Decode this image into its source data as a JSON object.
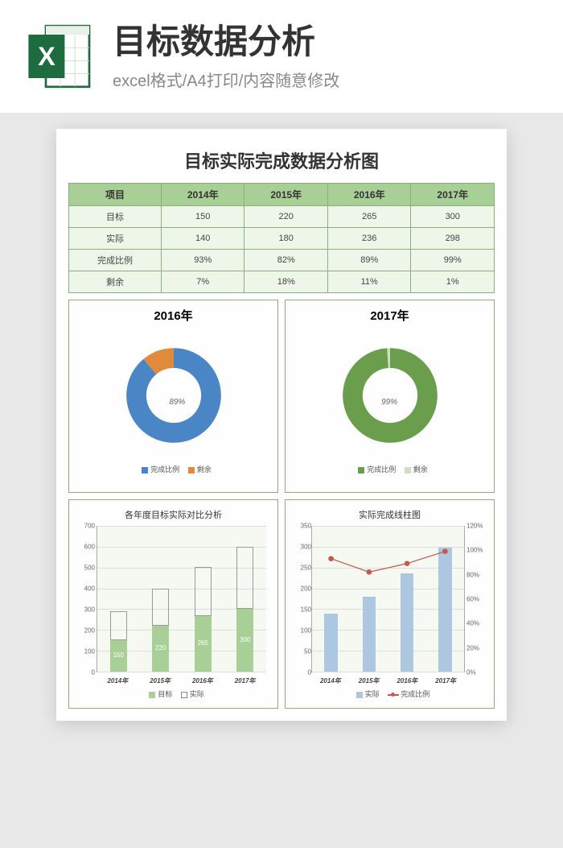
{
  "header": {
    "title": "目标数据分析",
    "subtitle": "excel格式/A4打印/内容随意修改",
    "icon_bg": "#1e6b3f",
    "icon_letter": "X"
  },
  "doc": {
    "title": "目标实际完成数据分析图"
  },
  "table": {
    "header_bg": "#a8cf95",
    "cell_bg": "#eef6e9",
    "border_color": "#8aaf7a",
    "columns": [
      "项目",
      "2014年",
      "2015年",
      "2016年",
      "2017年"
    ],
    "rows": [
      {
        "label": "目标",
        "values": [
          "150",
          "220",
          "265",
          "300"
        ]
      },
      {
        "label": "实际",
        "values": [
          "140",
          "180",
          "236",
          "298"
        ]
      },
      {
        "label": "完成比例",
        "values": [
          "93%",
          "82%",
          "89%",
          "99%"
        ]
      },
      {
        "label": "剩余",
        "values": [
          "7%",
          "18%",
          "11%",
          "1%"
        ]
      }
    ]
  },
  "donut2016": {
    "title": "2016年",
    "type": "donut",
    "complete_pct": 89,
    "remain_pct": 11,
    "complete_color": "#4a86c5",
    "remain_color": "#e08a3c",
    "inner_ratio": 0.58,
    "center_label": "89%",
    "legend": [
      "完成比例",
      "剩余"
    ]
  },
  "donut2017": {
    "title": "2017年",
    "type": "donut",
    "complete_pct": 99,
    "remain_pct": 1,
    "complete_color": "#6a9e4c",
    "remain_color": "#cde0c0",
    "inner_ratio": 0.58,
    "center_label": "99%",
    "legend": [
      "完成比例",
      "剩余"
    ]
  },
  "barcompare": {
    "title": "各年度目标实际对比分析",
    "type": "bar",
    "categories": [
      "2014年",
      "2015年",
      "2016年",
      "2017年"
    ],
    "target": [
      150,
      220,
      265,
      300
    ],
    "actual": [
      140,
      180,
      236,
      298
    ],
    "target_plus_actual": [
      290,
      400,
      501,
      598
    ],
    "ylim": [
      0,
      700
    ],
    "ytick_step": 100,
    "target_color": "#a8cf95",
    "actual_color": "#ffffff",
    "actual_border": "#888888",
    "bar_width": 0.4,
    "legend": [
      "目标",
      "实际"
    ],
    "labels_on_bars": [
      "150",
      "220",
      "265",
      "300"
    ]
  },
  "combochart": {
    "title": "实际完成线柱图",
    "type": "combo",
    "categories": [
      "2014年",
      "2015年",
      "2016年",
      "2017年"
    ],
    "actual": [
      140,
      180,
      236,
      298
    ],
    "pct": [
      93,
      82,
      89,
      99
    ],
    "ylim_left": [
      0,
      350
    ],
    "ytick_left": 50,
    "ylim_right": [
      0,
      120
    ],
    "ytick_right": 20,
    "bar_color": "#aec7e0",
    "line_color": "#c55a4a",
    "marker_color": "#c55a4a",
    "bar_width": 0.35,
    "legend": [
      "实际",
      "完成比例"
    ]
  }
}
